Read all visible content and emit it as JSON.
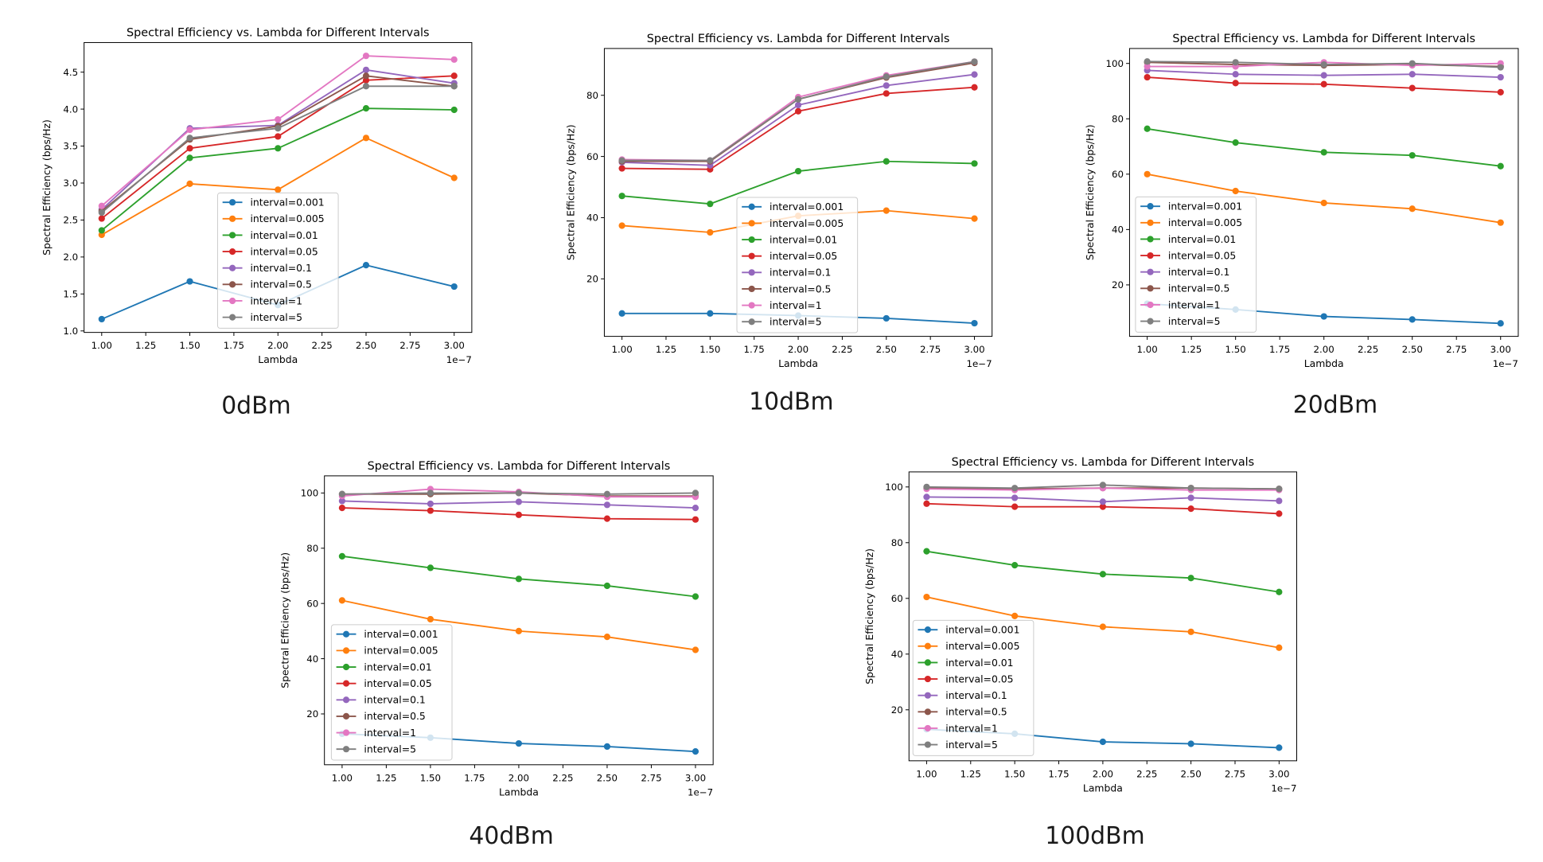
{
  "chart_data": [
    {
      "caption": "0dBm",
      "type": "line",
      "title": "Spectral Efficiency vs. Lambda for Different Intervals",
      "xlabel": "Lambda",
      "ylabel": "Spectral Efficiency (bps/Hz)",
      "x_offset_text": "1e−7",
      "x": [
        1e-07,
        1.5e-07,
        2e-07,
        2.5e-07,
        3e-07
      ],
      "xlim": [
        9e-08,
        3.1e-07
      ],
      "ylim": [
        0.98,
        4.9
      ],
      "xticks": [
        "1.00",
        "1.25",
        "1.50",
        "1.75",
        "2.00",
        "2.25",
        "2.50",
        "2.75",
        "3.00"
      ],
      "yticks": [
        "1.0",
        "1.5",
        "2.0",
        "2.5",
        "3.0",
        "3.5",
        "4.0",
        "4.5"
      ],
      "grid": false,
      "legend": "lower center",
      "series": [
        {
          "name": "interval=0.001",
          "color": "#1f77b4",
          "values": [
            1.16,
            1.67,
            1.35,
            1.89,
            1.6
          ]
        },
        {
          "name": "interval=0.005",
          "color": "#ff7f0e",
          "values": [
            2.3,
            2.99,
            2.91,
            3.61,
            3.07
          ]
        },
        {
          "name": "interval=0.01",
          "color": "#2ca02c",
          "values": [
            2.36,
            3.34,
            3.47,
            4.01,
            3.99
          ]
        },
        {
          "name": "interval=0.05",
          "color": "#d62728",
          "values": [
            2.52,
            3.47,
            3.63,
            4.39,
            4.45
          ]
        },
        {
          "name": "interval=0.1",
          "color": "#9467bd",
          "values": [
            2.64,
            3.74,
            3.78,
            4.53,
            4.35
          ]
        },
        {
          "name": "interval=0.5",
          "color": "#8c564b",
          "values": [
            2.62,
            3.59,
            3.77,
            4.45,
            4.31
          ]
        },
        {
          "name": "interval=1",
          "color": "#e377c2",
          "values": [
            2.69,
            3.72,
            3.86,
            4.72,
            4.67
          ]
        },
        {
          "name": "interval=5",
          "color": "#7f7f7f",
          "values": [
            2.6,
            3.61,
            3.74,
            4.31,
            4.31
          ]
        }
      ]
    },
    {
      "caption": "10dBm",
      "type": "line",
      "title": "Spectral Efficiency vs. Lambda for Different Intervals",
      "xlabel": "Lambda",
      "ylabel": "Spectral Efficiency (bps/Hz)",
      "x_offset_text": "1e−7",
      "x": [
        1e-07,
        1.5e-07,
        2e-07,
        2.5e-07,
        3e-07
      ],
      "xlim": [
        9e-08,
        3.1e-07
      ],
      "ylim": [
        1.2,
        95.3
      ],
      "xticks": [
        "1.00",
        "1.25",
        "1.50",
        "1.75",
        "2.00",
        "2.25",
        "2.50",
        "2.75",
        "3.00"
      ],
      "yticks": [
        "20",
        "40",
        "60",
        "80"
      ],
      "grid": false,
      "legend": "lower center",
      "series": [
        {
          "name": "interval=0.001",
          "color": "#1f77b4",
          "values": [
            8.7,
            8.7,
            8.0,
            7.1,
            5.5
          ]
        },
        {
          "name": "interval=0.005",
          "color": "#ff7f0e",
          "values": [
            37.4,
            35.2,
            40.6,
            42.3,
            39.7
          ]
        },
        {
          "name": "interval=0.01",
          "color": "#2ca02c",
          "values": [
            47.1,
            44.5,
            55.2,
            58.4,
            57.7
          ]
        },
        {
          "name": "interval=0.05",
          "color": "#d62728",
          "values": [
            56.1,
            55.8,
            74.8,
            80.6,
            82.6
          ]
        },
        {
          "name": "interval=0.1",
          "color": "#9467bd",
          "values": [
            58.1,
            57.1,
            76.8,
            83.2,
            86.8
          ]
        },
        {
          "name": "interval=0.5",
          "color": "#8c564b",
          "values": [
            58.4,
            58.4,
            78.7,
            85.8,
            90.6
          ]
        },
        {
          "name": "interval=1",
          "color": "#e377c2",
          "values": [
            59.0,
            58.7,
            79.4,
            86.5,
            91.0
          ]
        },
        {
          "name": "interval=5",
          "color": "#7f7f7f",
          "values": [
            58.7,
            58.7,
            78.7,
            86.1,
            91.0
          ]
        }
      ]
    },
    {
      "caption": "20dBm",
      "type": "line",
      "title": "Spectral Efficiency vs. Lambda for Different Intervals",
      "xlabel": "Lambda",
      "ylabel": "Spectral Efficiency (bps/Hz)",
      "x_offset_text": "1e−7",
      "x": [
        1e-07,
        1.5e-07,
        2e-07,
        2.5e-07,
        3e-07
      ],
      "xlim": [
        9e-08,
        3.1e-07
      ],
      "ylim": [
        1.4,
        105.4
      ],
      "xticks": [
        "1.00",
        "1.25",
        "1.50",
        "1.75",
        "2.00",
        "2.25",
        "2.50",
        "2.75",
        "3.00"
      ],
      "yticks": [
        "20",
        "40",
        "60",
        "80",
        "100"
      ],
      "grid": false,
      "legend": "lower left",
      "series": [
        {
          "name": "interval=0.001",
          "color": "#1f77b4",
          "values": [
            13.2,
            11.1,
            8.6,
            7.5,
            6.1
          ]
        },
        {
          "name": "interval=0.005",
          "color": "#ff7f0e",
          "values": [
            60.0,
            53.9,
            49.6,
            47.5,
            42.5
          ]
        },
        {
          "name": "interval=0.01",
          "color": "#2ca02c",
          "values": [
            76.4,
            71.4,
            67.9,
            66.8,
            62.9
          ]
        },
        {
          "name": "interval=0.05",
          "color": "#d62728",
          "values": [
            95.0,
            92.9,
            92.5,
            91.1,
            89.6
          ]
        },
        {
          "name": "interval=0.1",
          "color": "#9467bd",
          "values": [
            97.5,
            96.1,
            95.7,
            96.1,
            95.0
          ]
        },
        {
          "name": "interval=0.5",
          "color": "#8c564b",
          "values": [
            100.4,
            99.6,
            99.3,
            99.6,
            98.9
          ]
        },
        {
          "name": "interval=1",
          "color": "#e377c2",
          "values": [
            98.9,
            98.9,
            100.4,
            99.3,
            100.0
          ]
        },
        {
          "name": "interval=5",
          "color": "#7f7f7f",
          "values": [
            100.7,
            100.4,
            99.6,
            100.0,
            98.6
          ]
        }
      ]
    },
    {
      "caption": "40dBm",
      "type": "line",
      "title": "Spectral Efficiency vs. Lambda for Different Intervals",
      "xlabel": "Lambda",
      "ylabel": "Spectral Efficiency (bps/Hz)",
      "x_offset_text": "1e−7",
      "x": [
        1e-07,
        1.5e-07,
        2e-07,
        2.5e-07,
        3e-07
      ],
      "xlim": [
        9e-08,
        3.1e-07
      ],
      "ylim": [
        1.6,
        106.2
      ],
      "xticks": [
        "1.00",
        "1.25",
        "1.50",
        "1.75",
        "2.00",
        "2.25",
        "2.50",
        "2.75",
        "3.00"
      ],
      "yticks": [
        "20",
        "40",
        "60",
        "80",
        "100"
      ],
      "grid": false,
      "legend": "lower left",
      "series": [
        {
          "name": "interval=0.001",
          "color": "#1f77b4",
          "values": [
            12.8,
            11.4,
            9.3,
            8.2,
            6.4
          ]
        },
        {
          "name": "interval=0.005",
          "color": "#ff7f0e",
          "values": [
            61.1,
            54.3,
            50.0,
            47.9,
            43.2
          ]
        },
        {
          "name": "interval=0.01",
          "color": "#2ca02c",
          "values": [
            77.1,
            72.9,
            68.9,
            66.4,
            62.5
          ]
        },
        {
          "name": "interval=0.05",
          "color": "#d62728",
          "values": [
            94.6,
            93.6,
            92.1,
            90.7,
            90.4
          ]
        },
        {
          "name": "interval=0.1",
          "color": "#9467bd",
          "values": [
            97.1,
            96.1,
            96.8,
            95.7,
            94.6
          ]
        },
        {
          "name": "interval=0.5",
          "color": "#8c564b",
          "values": [
            99.6,
            99.6,
            100.0,
            98.9,
            98.9
          ]
        },
        {
          "name": "interval=1",
          "color": "#e377c2",
          "values": [
            98.9,
            101.4,
            100.4,
            98.6,
            98.6
          ]
        },
        {
          "name": "interval=5",
          "color": "#7f7f7f",
          "values": [
            99.6,
            100.0,
            100.0,
            99.6,
            100.0
          ]
        }
      ]
    },
    {
      "caption": "100dBm",
      "type": "line",
      "title": "Spectral Efficiency vs. Lambda for Different Intervals",
      "xlabel": "Lambda",
      "ylabel": "Spectral Efficiency (bps/Hz)",
      "x_offset_text": "1e−7",
      "x": [
        1e-07,
        1.5e-07,
        2e-07,
        2.5e-07,
        3e-07
      ],
      "xlim": [
        9e-08,
        3.1e-07
      ],
      "ylim": [
        1.7,
        105.4
      ],
      "xticks": [
        "1.00",
        "1.25",
        "1.50",
        "1.75",
        "2.00",
        "2.25",
        "2.50",
        "2.75",
        "3.00"
      ],
      "yticks": [
        "20",
        "40",
        "60",
        "80",
        "100"
      ],
      "grid": false,
      "legend": "lower left",
      "series": [
        {
          "name": "interval=0.001",
          "color": "#1f77b4",
          "values": [
            13.0,
            11.4,
            8.5,
            7.8,
            6.4
          ]
        },
        {
          "name": "interval=0.005",
          "color": "#ff7f0e",
          "values": [
            60.5,
            53.7,
            49.8,
            48.0,
            42.3
          ]
        },
        {
          "name": "interval=0.01",
          "color": "#2ca02c",
          "values": [
            76.9,
            71.9,
            68.7,
            67.3,
            62.3
          ]
        },
        {
          "name": "interval=0.05",
          "color": "#d62728",
          "values": [
            94.0,
            92.9,
            92.9,
            92.2,
            90.4
          ]
        },
        {
          "name": "interval=0.1",
          "color": "#9467bd",
          "values": [
            96.4,
            96.1,
            94.7,
            96.1,
            95.0
          ]
        },
        {
          "name": "interval=0.5",
          "color": "#8c564b",
          "values": [
            99.6,
            99.3,
            99.6,
            99.6,
            99.3
          ]
        },
        {
          "name": "interval=1",
          "color": "#e377c2",
          "values": [
            99.3,
            98.9,
            99.6,
            98.9,
            98.9
          ]
        },
        {
          "name": "interval=5",
          "color": "#7f7f7f",
          "values": [
            100.0,
            99.6,
            100.7,
            99.6,
            99.3
          ]
        }
      ]
    }
  ]
}
